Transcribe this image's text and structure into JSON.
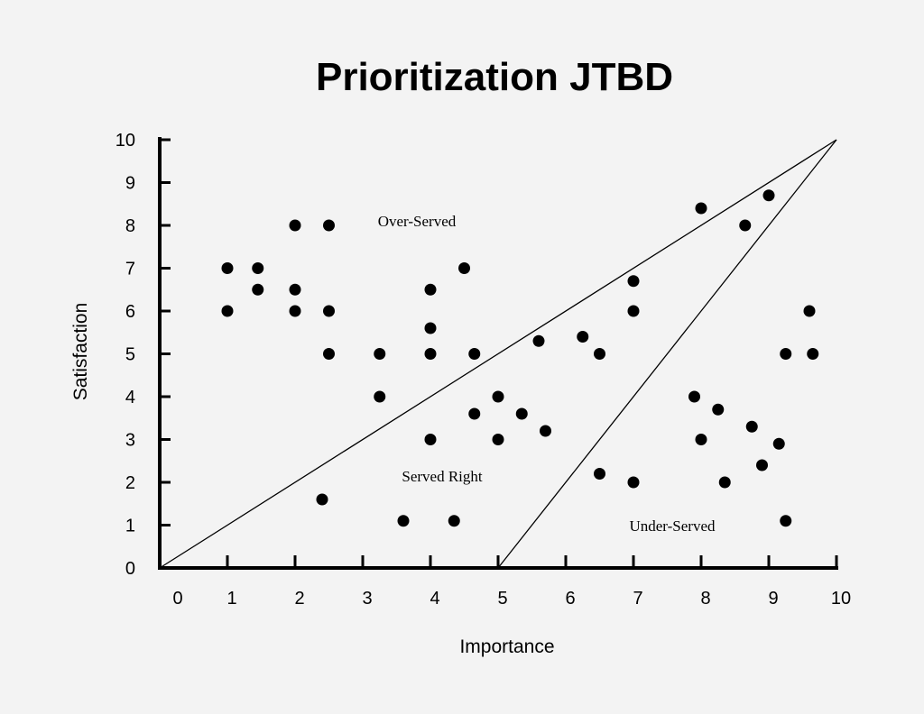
{
  "chart_data": {
    "type": "scatter",
    "title": "Prioritization JTBD",
    "xlabel": "Importance",
    "ylabel": "Satisfaction",
    "xlim": [
      0,
      10
    ],
    "ylim": [
      0,
      10
    ],
    "xticks": [
      0,
      1,
      2,
      3,
      4,
      5,
      6,
      7,
      8,
      9,
      10
    ],
    "yticks": [
      0,
      1,
      2,
      3,
      4,
      5,
      6,
      7,
      8,
      9,
      10
    ],
    "grid": false,
    "colors": {
      "background": "#f3f3f3",
      "ink": "#000000"
    },
    "region_labels": {
      "over_served": "Over-Served",
      "served_right": "Served Right",
      "under_served": "Under-Served"
    },
    "boundary_lines": [
      {
        "from": [
          0,
          0
        ],
        "to": [
          10,
          10
        ]
      },
      {
        "from": [
          5,
          0
        ],
        "to": [
          10,
          10
        ]
      }
    ],
    "points": [
      {
        "x": 1.0,
        "y": 7.0
      },
      {
        "x": 1.0,
        "y": 6.0
      },
      {
        "x": 1.45,
        "y": 7.0
      },
      {
        "x": 1.45,
        "y": 6.5
      },
      {
        "x": 2.0,
        "y": 8.0
      },
      {
        "x": 2.0,
        "y": 6.5
      },
      {
        "x": 2.0,
        "y": 6.0
      },
      {
        "x": 2.5,
        "y": 8.0
      },
      {
        "x": 2.5,
        "y": 6.0
      },
      {
        "x": 2.5,
        "y": 5.0
      },
      {
        "x": 2.4,
        "y": 1.6
      },
      {
        "x": 3.25,
        "y": 5.0
      },
      {
        "x": 3.25,
        "y": 4.0
      },
      {
        "x": 3.6,
        "y": 1.1
      },
      {
        "x": 4.0,
        "y": 6.5
      },
      {
        "x": 4.0,
        "y": 5.6
      },
      {
        "x": 4.0,
        "y": 5.0
      },
      {
        "x": 4.0,
        "y": 3.0
      },
      {
        "x": 4.35,
        "y": 1.1
      },
      {
        "x": 4.5,
        "y": 7.0
      },
      {
        "x": 4.65,
        "y": 5.0
      },
      {
        "x": 4.65,
        "y": 3.6
      },
      {
        "x": 5.0,
        "y": 4.0
      },
      {
        "x": 5.0,
        "y": 3.0
      },
      {
        "x": 5.35,
        "y": 3.6
      },
      {
        "x": 5.6,
        "y": 5.3
      },
      {
        "x": 5.7,
        "y": 3.2
      },
      {
        "x": 6.25,
        "y": 5.4
      },
      {
        "x": 6.5,
        "y": 5.0
      },
      {
        "x": 6.5,
        "y": 2.2
      },
      {
        "x": 7.0,
        "y": 6.7
      },
      {
        "x": 7.0,
        "y": 6.0
      },
      {
        "x": 7.0,
        "y": 2.0
      },
      {
        "x": 7.9,
        "y": 4.0
      },
      {
        "x": 8.0,
        "y": 8.4
      },
      {
        "x": 8.0,
        "y": 3.0
      },
      {
        "x": 8.25,
        "y": 3.7
      },
      {
        "x": 8.35,
        "y": 2.0
      },
      {
        "x": 8.65,
        "y": 8.0
      },
      {
        "x": 8.75,
        "y": 3.3
      },
      {
        "x": 8.9,
        "y": 2.4
      },
      {
        "x": 9.0,
        "y": 8.7
      },
      {
        "x": 9.15,
        "y": 2.9
      },
      {
        "x": 9.25,
        "y": 5.0
      },
      {
        "x": 9.25,
        "y": 1.1
      },
      {
        "x": 9.6,
        "y": 6.0
      },
      {
        "x": 9.65,
        "y": 5.0
      }
    ]
  }
}
